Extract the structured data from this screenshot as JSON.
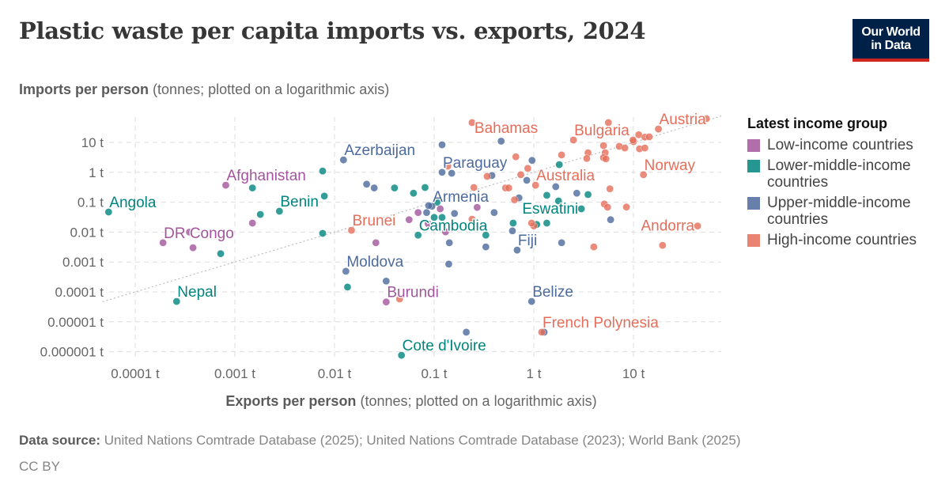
{
  "header": {
    "title": "Plastic waste per capita imports vs. exports, 2024",
    "logo_line1": "Our World",
    "logo_line2": "in Data"
  },
  "footer": {
    "source_label": "Data source:",
    "source_text": "United Nations Comtrade Database (2025); United Nations Comtrade Database (2023); World Bank (2025)",
    "license": "CC BY"
  },
  "chart_data": {
    "type": "scatter",
    "title": "Plastic waste per capita imports vs. exports, 2024",
    "xlabel_bold": "Exports per person",
    "xlabel_rest": "(tonnes; plotted on a logarithmic axis)",
    "ylabel_bold": "Imports per person",
    "ylabel_rest": "(tonnes; plotted on a logarithmic axis)",
    "xscale": "log",
    "yscale": "log",
    "xlim": [
      4.7e-05,
      75
    ],
    "ylim": [
      7e-07,
      70
    ],
    "xticks": [
      {
        "v": 0.0001,
        "label": "0.0001 t"
      },
      {
        "v": 0.001,
        "label": "0.001 t"
      },
      {
        "v": 0.01,
        "label": "0.01 t"
      },
      {
        "v": 0.1,
        "label": "0.1 t"
      },
      {
        "v": 1,
        "label": "1 t"
      },
      {
        "v": 10,
        "label": "10 t"
      }
    ],
    "yticks": [
      {
        "v": 10,
        "label": "10 t"
      },
      {
        "v": 1,
        "label": "1 t"
      },
      {
        "v": 0.1,
        "label": "0.1 t"
      },
      {
        "v": 0.01,
        "label": "0.01 t"
      },
      {
        "v": 0.001,
        "label": "0.001 t"
      },
      {
        "v": 0.0001,
        "label": "0.0001 t"
      },
      {
        "v": 1e-05,
        "label": "0.00001 t"
      },
      {
        "v": 1e-06,
        "label": "0.000001 t"
      }
    ],
    "grid": true,
    "reference_line": "y = x",
    "legend": {
      "title": "Latest income group",
      "placement": "right"
    },
    "series": [
      {
        "name": "Low-income countries",
        "color": "#a2559c",
        "points": [
          {
            "x": 0.00081,
            "y": 0.37,
            "label": "Afghanistan"
          },
          {
            "x": 0.00019,
            "y": 0.0044,
            "label": "DR Congo"
          },
          {
            "x": 0.00035,
            "y": 0.01
          },
          {
            "x": 0.00038,
            "y": 0.003
          },
          {
            "x": 0.0015,
            "y": 0.02
          },
          {
            "x": 0.033,
            "y": 4.6e-05,
            "label": "Burundi"
          },
          {
            "x": 0.026,
            "y": 0.0044
          },
          {
            "x": 0.056,
            "y": 0.026
          },
          {
            "x": 0.27,
            "y": 0.067
          },
          {
            "x": 0.13,
            "y": 0.0102
          },
          {
            "x": 0.115,
            "y": 0.06
          },
          {
            "x": 0.087,
            "y": 0.019
          },
          {
            "x": 0.069,
            "y": 0.045
          }
        ]
      },
      {
        "name": "Lower-middle-income countries",
        "color": "#00847e",
        "points": [
          {
            "x": 5.4e-05,
            "y": 0.047,
            "label": "Angola"
          },
          {
            "x": 0.0028,
            "y": 0.05,
            "label": "Benin"
          },
          {
            "x": 0.00026,
            "y": 4.8e-05,
            "label": "Nepal"
          },
          {
            "x": 0.047,
            "y": 7.6e-07,
            "label": "Cote d'Ivoire"
          },
          {
            "x": 0.069,
            "y": 0.0079,
            "label": "Cambodia"
          },
          {
            "x": 3.0,
            "y": 0.06,
            "label": "Eswatini"
          },
          {
            "x": 0.0015,
            "y": 0.3
          },
          {
            "x": 0.0076,
            "y": 1.1
          },
          {
            "x": 0.0079,
            "y": 0.16
          },
          {
            "x": 0.0018,
            "y": 0.039
          },
          {
            "x": 0.00072,
            "y": 0.0019
          },
          {
            "x": 0.0076,
            "y": 0.0091
          },
          {
            "x": 0.0135,
            "y": 0.000145
          },
          {
            "x": 0.04,
            "y": 0.3
          },
          {
            "x": 0.062,
            "y": 0.2
          },
          {
            "x": 0.081,
            "y": 0.31
          },
          {
            "x": 0.107,
            "y": 0.1
          },
          {
            "x": 0.12,
            "y": 0.031
          },
          {
            "x": 0.1,
            "y": 0.031
          },
          {
            "x": 0.33,
            "y": 0.0079
          },
          {
            "x": 1.8,
            "y": 1.8
          },
          {
            "x": 1.35,
            "y": 0.17
          },
          {
            "x": 3.5,
            "y": 0.18
          },
          {
            "x": 1.77,
            "y": 0.11
          },
          {
            "x": 1.35,
            "y": 0.02
          },
          {
            "x": 1.07,
            "y": 0.018
          },
          {
            "x": 0.62,
            "y": 0.02
          }
        ]
      },
      {
        "name": "Upper-middle-income countries",
        "color": "#4c6a9c",
        "points": [
          {
            "x": 0.0123,
            "y": 2.6,
            "label": "Azerbaijan"
          },
          {
            "x": 0.12,
            "y": 1.0,
            "label": "Paraguay"
          },
          {
            "x": 0.095,
            "y": 0.073,
            "label": "Armenia"
          },
          {
            "x": 0.013,
            "y": 0.00049,
            "label": "Moldova"
          },
          {
            "x": 0.68,
            "y": 0.0025,
            "label": "Fiji"
          },
          {
            "x": 0.95,
            "y": 4.8e-05,
            "label": "Belize"
          },
          {
            "x": 0.033,
            "y": 0.00023
          },
          {
            "x": 0.021,
            "y": 0.4
          },
          {
            "x": 0.025,
            "y": 0.3
          },
          {
            "x": 0.12,
            "y": 8.3
          },
          {
            "x": 0.15,
            "y": 0.93
          },
          {
            "x": 0.47,
            "y": 11
          },
          {
            "x": 0.96,
            "y": 2.5
          },
          {
            "x": 0.85,
            "y": 0.54
          },
          {
            "x": 0.38,
            "y": 0.78
          },
          {
            "x": 1.66,
            "y": 0.33
          },
          {
            "x": 2.7,
            "y": 0.2
          },
          {
            "x": 1.9,
            "y": 0.0044
          },
          {
            "x": 5.9,
            "y": 0.026
          },
          {
            "x": 0.61,
            "y": 0.011
          },
          {
            "x": 0.71,
            "y": 0.14
          },
          {
            "x": 0.4,
            "y": 0.045
          },
          {
            "x": 0.33,
            "y": 0.0032
          },
          {
            "x": 0.14,
            "y": 0.00085
          },
          {
            "x": 0.142,
            "y": 0.0044
          },
          {
            "x": 0.16,
            "y": 0.042
          },
          {
            "x": 0.084,
            "y": 0.045
          },
          {
            "x": 0.088,
            "y": 0.077
          },
          {
            "x": 0.21,
            "y": 4.5e-06
          },
          {
            "x": 1.27,
            "y": 4.5e-06
          }
        ]
      },
      {
        "name": "High-income countries",
        "color": "#e56e5a",
        "points": [
          {
            "x": 0.0148,
            "y": 0.0115,
            "label": "Brunei"
          },
          {
            "x": 0.24,
            "y": 46,
            "label": "Bahamas"
          },
          {
            "x": 2.5,
            "y": 12,
            "label": "Bulgaria"
          },
          {
            "x": 17.8,
            "y": 28,
            "label": "Austria"
          },
          {
            "x": 12.6,
            "y": 0.83,
            "label": "Norway"
          },
          {
            "x": 1.04,
            "y": 0.37,
            "label": "Australia"
          },
          {
            "x": 44,
            "y": 0.016,
            "label": "Andorra"
          },
          {
            "x": 1.2,
            "y": 4.5e-06,
            "label": "French Polynesia"
          },
          {
            "x": 0.045,
            "y": 5.8e-05
          },
          {
            "x": 0.137,
            "y": 1.6
          },
          {
            "x": 0.66,
            "y": 3.3
          },
          {
            "x": 0.87,
            "y": 1.35
          },
          {
            "x": 0.74,
            "y": 0.83
          },
          {
            "x": 0.34,
            "y": 0.73
          },
          {
            "x": 0.25,
            "y": 0.31
          },
          {
            "x": 0.52,
            "y": 0.3
          },
          {
            "x": 0.56,
            "y": 0.3
          },
          {
            "x": 5.8,
            "y": 0.28
          },
          {
            "x": 1.9,
            "y": 3.8
          },
          {
            "x": 3.5,
            "y": 4.5
          },
          {
            "x": 3.4,
            "y": 2.9
          },
          {
            "x": 5.0,
            "y": 7.8
          },
          {
            "x": 5.2,
            "y": 4.5
          },
          {
            "x": 5.0,
            "y": 3.1
          },
          {
            "x": 5.3,
            "y": 2.8
          },
          {
            "x": 5.6,
            "y": 46
          },
          {
            "x": 7.2,
            "y": 7.4
          },
          {
            "x": 8.2,
            "y": 6.5
          },
          {
            "x": 10,
            "y": 10.6
          },
          {
            "x": 9.9,
            "y": 12
          },
          {
            "x": 11.5,
            "y": 6.1
          },
          {
            "x": 13,
            "y": 6.5
          },
          {
            "x": 11.3,
            "y": 18
          },
          {
            "x": 13,
            "y": 15
          },
          {
            "x": 14.4,
            "y": 15.3
          },
          {
            "x": 54,
            "y": 62
          },
          {
            "x": 5.1,
            "y": 0.087
          },
          {
            "x": 5.5,
            "y": 0.068
          },
          {
            "x": 8.5,
            "y": 0.069
          },
          {
            "x": 19.6,
            "y": 0.0036
          },
          {
            "x": 4.0,
            "y": 0.0032
          },
          {
            "x": 1.0,
            "y": 0.016
          },
          {
            "x": 0.95,
            "y": 0.02
          },
          {
            "x": 0.64,
            "y": 0.12
          },
          {
            "x": 0.24,
            "y": 0.027
          }
        ]
      }
    ]
  }
}
